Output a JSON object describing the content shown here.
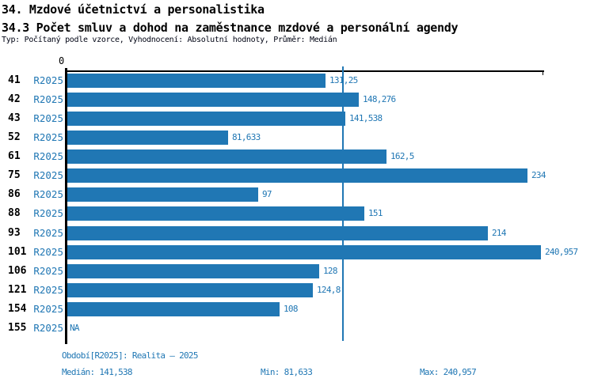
{
  "header": {
    "title_line1": "34. Mzdové účetnictví a personalistika",
    "title_line2": "34.3 Počet smluv a dohod na zaměstnance mzdové a personální agendy",
    "subtitle": "Typ: Počítaný podle vzorce, Vyhodnocení: Absolutní hodnoty, Průměr: Medián"
  },
  "chart_data": {
    "type": "bar",
    "orientation": "horizontal",
    "title": "34.3 Počet smluv a dohod na zaměstnance mzdové a personální agendy",
    "categories": [
      "41",
      "42",
      "43",
      "52",
      "61",
      "75",
      "86",
      "88",
      "93",
      "101",
      "106",
      "121",
      "154",
      "155"
    ],
    "series": [
      {
        "name": "R2025",
        "values": [
          131.25,
          148.276,
          141.538,
          81.633,
          162.5,
          234,
          97,
          151,
          214,
          240.957,
          128,
          124.8,
          108,
          null
        ]
      }
    ],
    "value_labels": [
      "131,25",
      "148,276",
      "141,538",
      "81,633",
      "162,5",
      "234",
      "97",
      "151",
      "214",
      "240,957",
      "128",
      "124,8",
      "108",
      "NA"
    ],
    "xlim": [
      0,
      240.957
    ],
    "axis_zero_label": "0",
    "median_line_value": 141.538,
    "grid": false,
    "legend_position": "none"
  },
  "footer": {
    "period": "Období[R2025]: Realita – 2025",
    "median": "Medián: 141,538",
    "min": "Min: 81,633",
    "max": "Max: 240,957"
  },
  "colors": {
    "bar": "#2077b4",
    "accent_text": "#2077b4",
    "median_line": "#2077b4",
    "axis": "#000000",
    "title_text": "#000000"
  }
}
